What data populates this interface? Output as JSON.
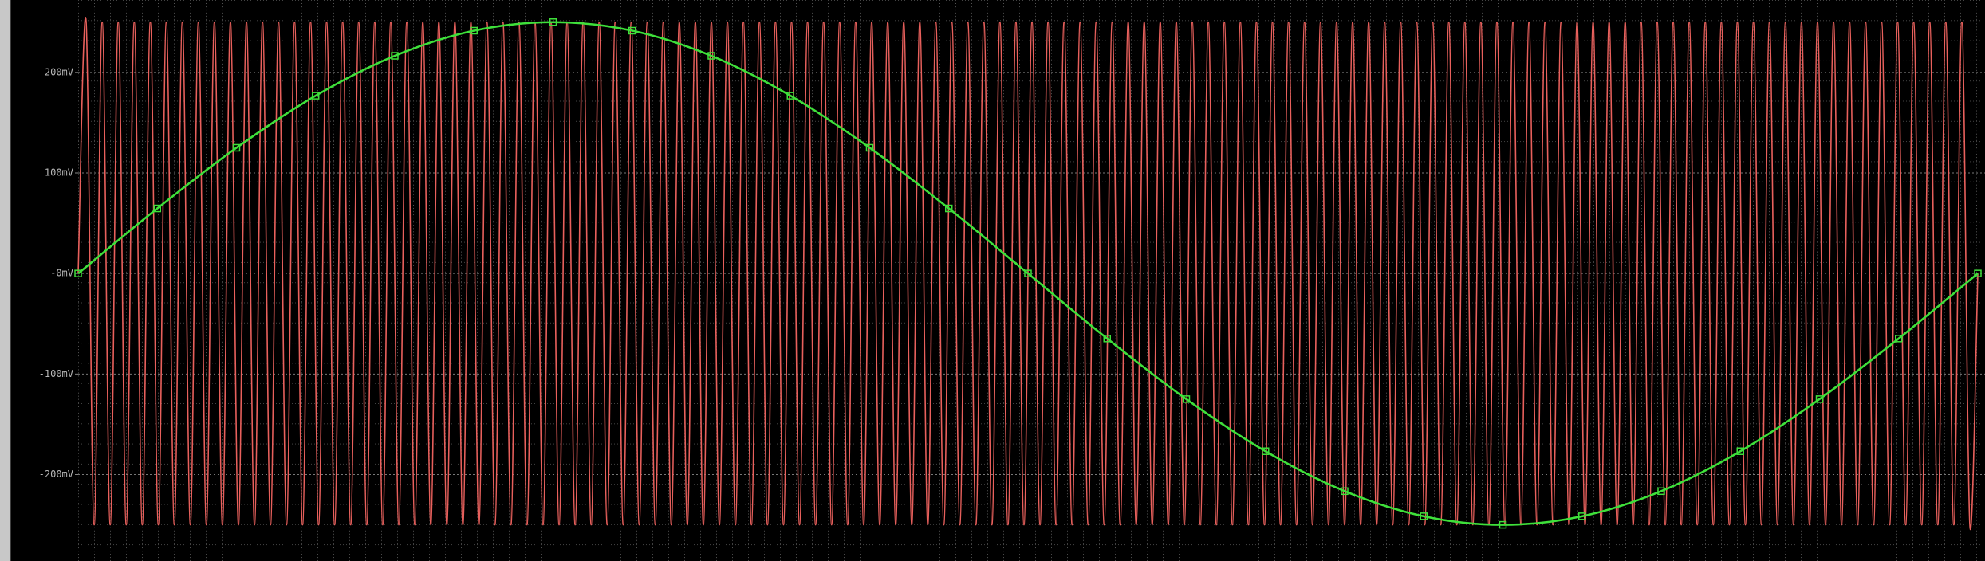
{
  "chart_data": {
    "type": "line",
    "ylim": [
      -286,
      272
    ],
    "yticks": [
      {
        "value": 200,
        "label": "200mV"
      },
      {
        "value": 100,
        "label": "100mV"
      },
      {
        "value": 0,
        "label": "-0mV"
      },
      {
        "value": -100,
        "label": "-100mV"
      },
      {
        "value": -200,
        "label": "-200mV"
      }
    ],
    "grid": true,
    "background": "#000000",
    "series": [
      {
        "color": "#e8605c",
        "markers": false,
        "values": [
          0,
          250,
          -250,
          250,
          -250,
          250,
          -250,
          250,
          -250,
          250,
          -250,
          250,
          -250,
          250,
          -250,
          250,
          -250,
          250,
          -250,
          250,
          -250,
          250,
          -250,
          250,
          -250,
          250,
          -250,
          250,
          -250,
          250,
          -250,
          250,
          -250,
          250,
          -250,
          250,
          -250,
          250,
          -250,
          250,
          -250,
          250,
          -250,
          250,
          -250,
          250,
          -250,
          250,
          -250,
          250,
          -250,
          250,
          -250,
          250,
          -250,
          250,
          -250,
          250,
          -250,
          250,
          -250,
          250,
          -250,
          250,
          -250,
          250,
          -250,
          250,
          -250,
          250,
          -250,
          250,
          -250,
          250,
          -250,
          250,
          -250,
          250,
          -250,
          250,
          -250,
          250,
          -250,
          250,
          -250,
          250,
          -250,
          250,
          -250,
          250,
          -250,
          250,
          -250,
          250,
          -250,
          250,
          -250,
          250,
          -250,
          250,
          -250,
          250,
          -250,
          250,
          -250,
          250,
          -250,
          250,
          -250,
          250,
          -250,
          250,
          -250,
          250,
          -250,
          250,
          -250,
          250,
          -250,
          250,
          -250,
          250,
          -250,
          250,
          -250,
          250,
          -250,
          250,
          -250,
          250,
          -250,
          250,
          -250,
          250,
          -250,
          250,
          -250,
          250,
          -250,
          250,
          -250,
          250,
          -250,
          250,
          -250,
          250,
          -250,
          250,
          -250,
          250,
          -250,
          250,
          -250,
          250,
          -250,
          250,
          -250,
          250,
          -250,
          250,
          -250,
          250,
          -250,
          250,
          -250,
          250,
          -250,
          250,
          -250,
          250,
          -250,
          250,
          -250,
          250,
          -250,
          250,
          -250,
          250,
          -250,
          250,
          -250,
          250,
          -250,
          250,
          -250,
          250,
          -250,
          250,
          -250,
          250,
          -250,
          250,
          -250,
          250,
          -250,
          250,
          -250,
          250,
          -250,
          250,
          -250,
          250,
          -250,
          250,
          -250,
          250,
          -250,
          250,
          -250,
          250,
          -250,
          250,
          -250,
          250,
          -250,
          250,
          -250,
          250,
          -250,
          250,
          -250,
          250,
          -250,
          250,
          -250,
          250,
          -250,
          250,
          -250,
          250,
          -250,
          250,
          -250,
          250,
          -250,
          250,
          -250,
          0
        ]
      },
      {
        "color": "#3ee03a",
        "markers": true,
        "values": [
          0,
          64.7,
          125,
          176.8,
          216.5,
          241.5,
          250,
          241.5,
          216.5,
          176.8,
          125,
          64.7,
          0,
          -64.7,
          -125,
          -176.8,
          -216.5,
          -241.5,
          -250,
          -241.5,
          -216.5,
          -176.8,
          -125,
          -64.7,
          0
        ]
      }
    ]
  }
}
